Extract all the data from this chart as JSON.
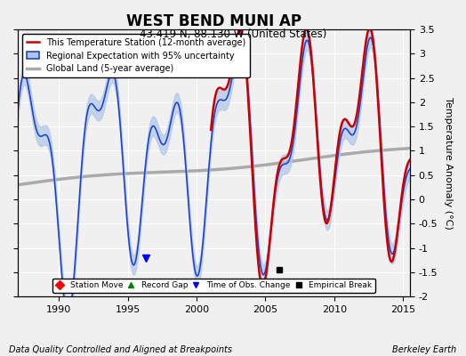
{
  "title": "WEST BEND MUNI AP",
  "subtitle": "43.419 N, 88.130 W (United States)",
  "ylabel": "Temperature Anomaly (°C)",
  "xlabel_left": "Data Quality Controlled and Aligned at Breakpoints",
  "xlabel_right": "Berkeley Earth",
  "ylim": [
    -2,
    3.5
  ],
  "xlim": [
    1987.0,
    2015.5
  ],
  "yticks": [
    -2,
    -1.5,
    -1,
    -0.5,
    0,
    0.5,
    1,
    1.5,
    2,
    2.5,
    3,
    3.5
  ],
  "xticks": [
    1990,
    1995,
    2000,
    2005,
    2010,
    2015
  ],
  "background_color": "#f0f0f0",
  "legend_labels": [
    "This Temperature Station (12-month average)",
    "Regional Expectation with 95% uncertainty",
    "Global Land (5-year average)"
  ],
  "line_colors": {
    "station": "#cc0000",
    "regional": "#2244cc",
    "regional_band": "#adc6e8",
    "global_land": "#aaaaaa"
  },
  "marker_positions": {
    "obs_change_x": 1996.3,
    "obs_change_y": -1.2,
    "empirical_break_x": 2006.0,
    "empirical_break_y": -1.45
  }
}
